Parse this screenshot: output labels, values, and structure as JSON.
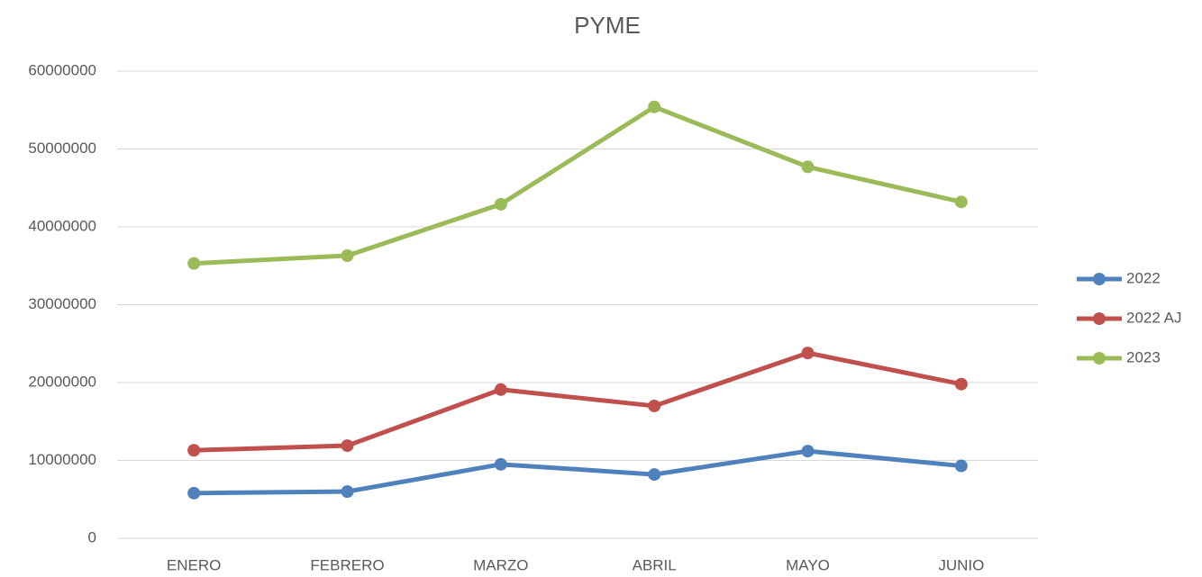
{
  "chart_data": {
    "type": "line",
    "title": "PYME",
    "categories": [
      "ENERO",
      "FEBRERO",
      "MARZO",
      "ABRIL",
      "MAYO",
      "JUNIO"
    ],
    "series": [
      {
        "name": "2022",
        "color": "#4f81bd",
        "values": [
          5800000,
          6000000,
          9500000,
          8200000,
          11200000,
          9300000
        ]
      },
      {
        "name": "2022 AJ",
        "color": "#c0504d",
        "values": [
          11300000,
          11900000,
          19100000,
          17000000,
          23800000,
          19800000
        ]
      },
      {
        "name": "2023",
        "color": "#9bbb59",
        "values": [
          35300000,
          36300000,
          42900000,
          55400000,
          47700000,
          43200000
        ]
      }
    ],
    "ylim": [
      0,
      60000000
    ],
    "yticks": [
      0,
      10000000,
      20000000,
      30000000,
      40000000,
      50000000,
      60000000
    ],
    "grid": true,
    "legend": "right"
  }
}
